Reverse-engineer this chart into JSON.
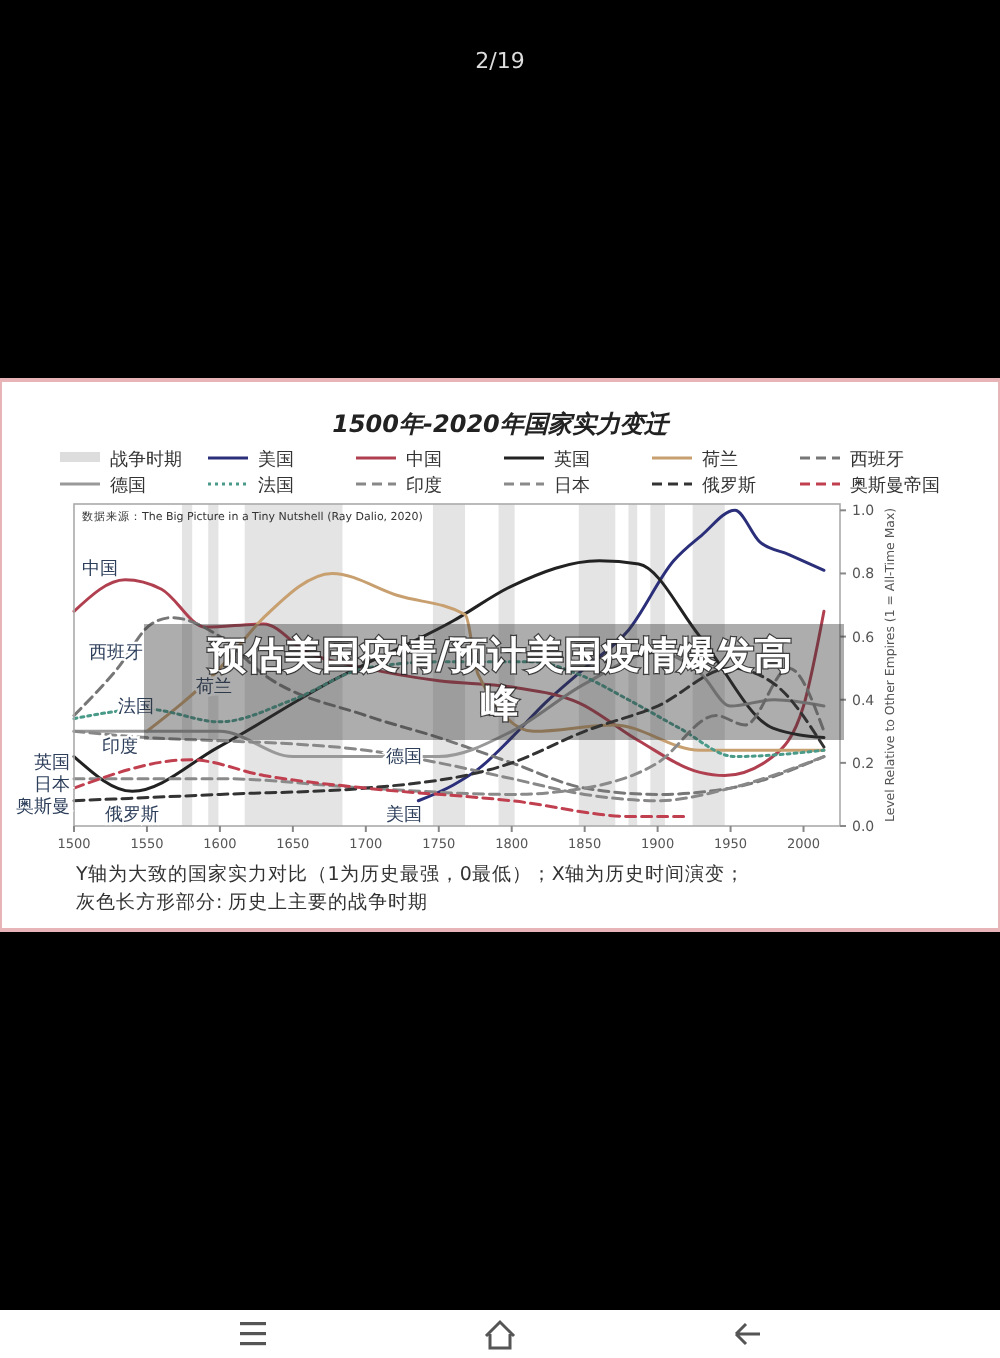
{
  "chart_data": {
    "type": "line",
    "title": "1500年-2020年国家实力变迁",
    "ylabel": "Level Relative to Other Empires (1 = All-Time Max)",
    "xlim": [
      1500,
      2025
    ],
    "ylim": [
      0,
      1.02
    ],
    "xticks": [
      1500,
      1550,
      1600,
      1650,
      1700,
      1750,
      1800,
      1850,
      1900,
      1950,
      2000
    ],
    "yticks": [
      {
        "value": 0,
        "label": "0.0"
      },
      {
        "value": 0.2,
        "label": "0.2"
      },
      {
        "value": 0.4,
        "label": "0.4"
      },
      {
        "value": 0.6,
        "label": "0.6"
      },
      {
        "value": 0.8,
        "label": "0.8"
      },
      {
        "value": 1,
        "label": "1.0"
      }
    ],
    "legend": "top",
    "grid": false,
    "bands": [
      {
        "axis": "x",
        "from": 1574,
        "to": 1581,
        "label": "战争时期",
        "color": "#dddddd"
      },
      {
        "axis": "x",
        "from": 1592,
        "to": 1599,
        "color": "#dddddd"
      },
      {
        "axis": "x",
        "from": 1617,
        "to": 1684,
        "color": "#dddddd"
      },
      {
        "axis": "x",
        "from": 1746,
        "to": 1768,
        "color": "#dddddd"
      },
      {
        "axis": "x",
        "from": 1791,
        "to": 1802,
        "color": "#dddddd"
      },
      {
        "axis": "x",
        "from": 1846,
        "to": 1871,
        "color": "#dddddd"
      },
      {
        "axis": "x",
        "from": 1880,
        "to": 1886,
        "color": "#dddddd"
      },
      {
        "axis": "x",
        "from": 1895,
        "to": 1905,
        "color": "#dddddd"
      },
      {
        "axis": "x",
        "from": 1924,
        "to": 1946,
        "color": "#dddddd"
      }
    ],
    "series": [
      {
        "name": "美国",
        "color": "#2b2f7a",
        "line_style": "solid",
        "x": [
          1736,
          1760,
          1777,
          1800,
          1823,
          1850,
          1880,
          1911,
          1930,
          1953,
          1970,
          1990,
          2014
        ],
        "values": [
          0.08,
          0.13,
          0.18,
          0.28,
          0.39,
          0.5,
          0.62,
          0.84,
          0.92,
          1.0,
          0.9,
          0.86,
          0.81
        ]
      },
      {
        "name": "中国",
        "color": "#b04050",
        "line_style": "solid",
        "x": [
          1500,
          1535,
          1560,
          1590,
          1630,
          1660,
          1700,
          1750,
          1800,
          1846,
          1887,
          1929,
          1946,
          1979,
          2000,
          2014
        ],
        "values": [
          0.68,
          0.78,
          0.75,
          0.63,
          0.64,
          0.55,
          0.5,
          0.46,
          0.44,
          0.39,
          0.27,
          0.17,
          0.16,
          0.22,
          0.38,
          0.68
        ]
      },
      {
        "name": "英国",
        "color": "#222222",
        "line_style": "solid",
        "x": [
          1500,
          1540,
          1599,
          1677,
          1760,
          1800,
          1860,
          1887,
          1929,
          1979,
          2014
        ],
        "values": [
          0.22,
          0.11,
          0.25,
          0.46,
          0.65,
          0.76,
          0.84,
          0.83,
          0.6,
          0.31,
          0.28
        ]
      },
      {
        "name": "荷兰",
        "color": "#c8a070",
        "line_style": "solid",
        "x": [
          1550,
          1600,
          1630,
          1677,
          1722,
          1768,
          1777,
          1815,
          1870,
          1929,
          2014
        ],
        "values": [
          0.3,
          0.5,
          0.66,
          0.8,
          0.73,
          0.67,
          0.48,
          0.3,
          0.32,
          0.24,
          0.24
        ]
      },
      {
        "name": "西班牙",
        "color": "#777777",
        "line_style": "dashed",
        "x": [
          1500,
          1530,
          1553,
          1567,
          1600,
          1630,
          1700,
          1750,
          1800,
          1850,
          1900,
          1950,
          2014
        ],
        "values": [
          0.35,
          0.5,
          0.64,
          0.66,
          0.6,
          0.48,
          0.35,
          0.28,
          0.2,
          0.12,
          0.1,
          0.12,
          0.22
        ]
      },
      {
        "name": "德国",
        "color": "#999999",
        "line_style": "solid",
        "x": [
          1500,
          1600,
          1650,
          1700,
          1750,
          1800,
          1850,
          1900,
          1930,
          1950,
          1980,
          2014
        ],
        "values": [
          0.3,
          0.3,
          0.22,
          0.22,
          0.22,
          0.3,
          0.45,
          0.55,
          0.48,
          0.38,
          0.4,
          0.38
        ]
      },
      {
        "name": "法国",
        "color": "#4a9a8a",
        "line_style": "dotted",
        "x": [
          1500,
          1550,
          1600,
          1650,
          1700,
          1750,
          1815,
          1846,
          1880,
          1915,
          1953,
          2014
        ],
        "values": [
          0.34,
          0.37,
          0.33,
          0.4,
          0.5,
          0.52,
          0.52,
          0.48,
          0.4,
          0.31,
          0.22,
          0.24
        ]
      },
      {
        "name": "印度",
        "color": "#888888",
        "line_style": "dashed",
        "x": [
          1500,
          1550,
          1600,
          1650,
          1700,
          1750,
          1800,
          1850,
          1900,
          1950,
          2014
        ],
        "values": [
          0.3,
          0.28,
          0.27,
          0.26,
          0.24,
          0.2,
          0.15,
          0.1,
          0.08,
          0.12,
          0.22
        ]
      },
      {
        "name": "日本",
        "color": "#8a8a8a",
        "line_style": "dashed",
        "x": [
          1500,
          1600,
          1700,
          1800,
          1850,
          1900,
          1940,
          1960,
          1990,
          2014
        ],
        "values": [
          0.15,
          0.15,
          0.12,
          0.1,
          0.12,
          0.2,
          0.35,
          0.32,
          0.5,
          0.3
        ]
      },
      {
        "name": "俄罗斯",
        "color": "#333333",
        "line_style": "dashed",
        "x": [
          1500,
          1600,
          1700,
          1800,
          1850,
          1900,
          1950,
          1980,
          2014
        ],
        "values": [
          0.08,
          0.1,
          0.12,
          0.2,
          0.3,
          0.38,
          0.5,
          0.45,
          0.25
        ]
      },
      {
        "name": "奥斯曼帝国",
        "color": "#c04050",
        "line_style": "dashed",
        "x": [
          1500,
          1580,
          1630,
          1700,
          1800,
          1883,
          1920
        ],
        "values": [
          0.12,
          0.21,
          0.16,
          0.12,
          0.08,
          0.03,
          0.03
        ]
      }
    ],
    "annotations": [
      "数据来源：The Big Picture in a Tiny Nutshell (Ray Dalio, 2020)",
      "中国",
      "西班牙",
      "荷兰",
      "法国",
      "印度",
      "英国",
      "日本",
      "奥斯曼",
      "俄罗斯",
      "德国",
      "美国",
      "Y轴为大致的国家实力对比（1为历史最强，0最低）；X轴为历史时间演变；",
      "灰色长方形部分: 历史上主要的战争时期",
      "预估美国疫情/预计美国疫情爆发高峰",
      "2/19"
    ]
  }
}
